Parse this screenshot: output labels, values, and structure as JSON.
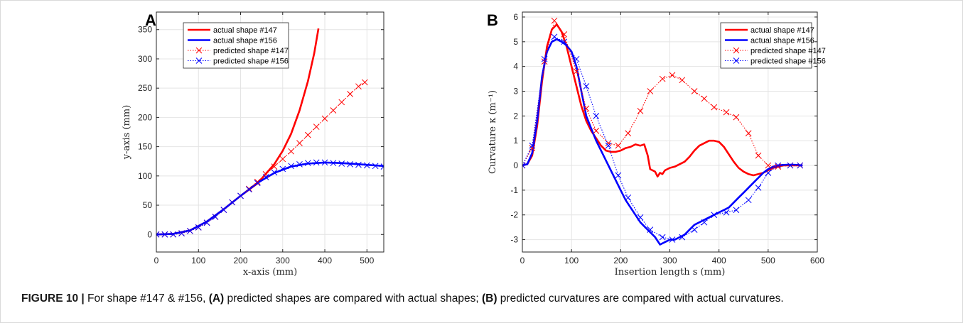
{
  "caption": {
    "label": "FIGURE 10 |",
    "t1": " For shape #147 & #156, ",
    "a": "(A)",
    "t2": " predicted shapes are compared with actual shapes; ",
    "b": "(B)",
    "t3": " predicted curvatures are compared with actual curvatures."
  },
  "chart_data": [
    {
      "type": "line",
      "panel": "A",
      "xlabel": "x-axis (mm)",
      "ylabel": "y-axis (mm)",
      "xlim": [
        0,
        540
      ],
      "ylim": [
        -30,
        380
      ],
      "xticks": [
        0,
        100,
        200,
        300,
        400,
        500
      ],
      "yticks": [
        0,
        50,
        100,
        150,
        200,
        250,
        300,
        350
      ],
      "grid": true,
      "legend_position": "top-left",
      "series": [
        {
          "name": "actual shape #147",
          "style": "solid",
          "color": "#ff0000",
          "markers": false,
          "x": [
            0,
            40,
            80,
            120,
            160,
            200,
            240,
            280,
            300,
            320,
            340,
            360,
            375,
            385
          ],
          "y": [
            0,
            1,
            7,
            22,
            43,
            66,
            87,
            120,
            143,
            172,
            212,
            262,
            310,
            352
          ]
        },
        {
          "name": "actual shape #156",
          "style": "solid",
          "color": "#0000ff",
          "markers": false,
          "x": [
            0,
            40,
            80,
            120,
            160,
            200,
            240,
            280,
            320,
            360,
            400,
            440,
            480,
            520,
            540
          ],
          "y": [
            0,
            1,
            7,
            22,
            43,
            66,
            88,
            105,
            116,
            121,
            123,
            122,
            120,
            118,
            117
          ]
        },
        {
          "name": "predicted shape #147",
          "style": "dotted",
          "color": "#ff0000",
          "markers": true,
          "x": [
            0,
            20,
            40,
            60,
            80,
            100,
            120,
            140,
            160,
            180,
            200,
            220,
            240,
            260,
            280,
            300,
            320,
            340,
            360,
            380,
            400,
            420,
            440,
            460,
            480,
            495
          ],
          "y": [
            0,
            0,
            0,
            2,
            6,
            12,
            20,
            30,
            42,
            55,
            66,
            78,
            90,
            103,
            116,
            129,
            142,
            156,
            170,
            184,
            198,
            212,
            226,
            240,
            253,
            260
          ]
        },
        {
          "name": "predicted shape #156",
          "style": "dotted",
          "color": "#0000ff",
          "markers": true,
          "x": [
            0,
            20,
            40,
            60,
            80,
            100,
            120,
            140,
            160,
            180,
            200,
            220,
            240,
            260,
            280,
            300,
            320,
            340,
            360,
            380,
            400,
            420,
            440,
            460,
            480,
            500,
            520,
            540
          ],
          "y": [
            0,
            0,
            0,
            2,
            6,
            12,
            20,
            30,
            42,
            55,
            66,
            77,
            88,
            98,
            106,
            112,
            117,
            120,
            122,
            123,
            123,
            122,
            121,
            120,
            119,
            118,
            117,
            116
          ]
        }
      ]
    },
    {
      "type": "line",
      "panel": "B",
      "xlabel": "Insertion length s (mm)",
      "ylabel": "Curvature κ (m⁻¹)",
      "xlim": [
        0,
        600
      ],
      "ylim": [
        -3.5,
        6.2
      ],
      "xticks": [
        0,
        100,
        200,
        300,
        400,
        500,
        600
      ],
      "yticks": [
        -3,
        -2,
        -1,
        0,
        1,
        2,
        3,
        4,
        5,
        6
      ],
      "grid": true,
      "legend_position": "top-right",
      "series": [
        {
          "name": "actual shape #147",
          "style": "solid",
          "color": "#ff0000",
          "markers": false,
          "x": [
            0,
            10,
            20,
            30,
            40,
            50,
            60,
            70,
            80,
            90,
            100,
            110,
            120,
            130,
            140,
            150,
            160,
            170,
            180,
            190,
            200,
            210,
            220,
            230,
            240,
            248,
            255,
            260,
            265,
            270,
            275,
            280,
            285,
            290,
            300,
            310,
            320,
            330,
            340,
            350,
            360,
            370,
            380,
            390,
            400,
            410,
            420,
            430,
            440,
            450,
            460,
            470,
            480,
            490,
            500,
            510,
            520,
            530,
            540,
            550,
            560,
            570
          ],
          "y": [
            0,
            0.05,
            0.4,
            1.6,
            3.4,
            4.8,
            5.5,
            5.7,
            5.4,
            4.8,
            4.0,
            3.2,
            2.4,
            1.8,
            1.4,
            1.1,
            0.8,
            0.6,
            0.55,
            0.55,
            0.6,
            0.7,
            0.75,
            0.85,
            0.8,
            0.85,
            0.4,
            -0.15,
            -0.2,
            -0.25,
            -0.45,
            -0.3,
            -0.35,
            -0.2,
            -0.1,
            -0.05,
            0.05,
            0.15,
            0.35,
            0.6,
            0.8,
            0.9,
            1.0,
            1.0,
            0.95,
            0.75,
            0.45,
            0.15,
            -0.1,
            -0.25,
            -0.35,
            -0.4,
            -0.35,
            -0.3,
            -0.2,
            -0.1,
            -0.05,
            0,
            0,
            0,
            0,
            0
          ]
        },
        {
          "name": "actual shape #156",
          "style": "solid",
          "color": "#0000ff",
          "markers": false,
          "x": [
            0,
            10,
            20,
            30,
            40,
            50,
            60,
            70,
            80,
            90,
            100,
            110,
            120,
            130,
            140,
            150,
            160,
            170,
            180,
            190,
            200,
            210,
            220,
            230,
            240,
            250,
            260,
            270,
            280,
            290,
            300,
            310,
            320,
            330,
            340,
            350,
            360,
            370,
            380,
            390,
            400,
            410,
            420,
            430,
            440,
            450,
            460,
            470,
            480,
            490,
            500,
            510,
            520,
            530,
            540,
            550,
            560,
            570
          ],
          "y": [
            0,
            0.05,
            0.5,
            1.8,
            3.6,
            4.6,
            5.0,
            5.1,
            5.0,
            4.85,
            4.6,
            4.0,
            3.0,
            2.0,
            1.5,
            1.0,
            0.6,
            0.2,
            -0.2,
            -0.6,
            -1.0,
            -1.4,
            -1.7,
            -2.0,
            -2.3,
            -2.5,
            -2.7,
            -2.9,
            -3.2,
            -3.1,
            -3.0,
            -3.0,
            -2.9,
            -2.8,
            -2.6,
            -2.4,
            -2.3,
            -2.2,
            -2.1,
            -2.0,
            -1.9,
            -1.8,
            -1.7,
            -1.5,
            -1.3,
            -1.1,
            -0.9,
            -0.7,
            -0.5,
            -0.3,
            -0.15,
            -0.05,
            0,
            0.02,
            0.03,
            0.03,
            0.02,
            0
          ]
        },
        {
          "name": "predicted shape #147",
          "style": "dotted",
          "color": "#ff0000",
          "markers": true,
          "x": [
            0,
            20,
            45,
            65,
            85,
            110,
            130,
            150,
            175,
            195,
            215,
            240,
            260,
            285,
            305,
            325,
            350,
            370,
            390,
            415,
            435,
            460,
            480,
            500,
            520,
            545,
            565
          ],
          "y": [
            0,
            0.7,
            4.2,
            5.85,
            5.3,
            3.8,
            2.3,
            1.4,
            0.9,
            0.8,
            1.3,
            2.2,
            3.0,
            3.5,
            3.65,
            3.45,
            3.0,
            2.7,
            2.35,
            2.15,
            1.95,
            1.3,
            0.4,
            0.0,
            -0.05,
            0.0,
            0.0
          ]
        },
        {
          "name": "predicted shape #156",
          "style": "dotted",
          "color": "#0000ff",
          "markers": true,
          "x": [
            0,
            20,
            45,
            65,
            85,
            110,
            130,
            150,
            175,
            195,
            215,
            240,
            260,
            285,
            305,
            325,
            350,
            370,
            390,
            415,
            435,
            460,
            480,
            500,
            520,
            545,
            565
          ],
          "y": [
            0,
            0.8,
            4.3,
            5.2,
            5.0,
            4.3,
            3.2,
            2.0,
            0.8,
            -0.4,
            -1.3,
            -2.1,
            -2.6,
            -2.9,
            -3.0,
            -2.9,
            -2.6,
            -2.3,
            -2.0,
            -1.9,
            -1.8,
            -1.4,
            -0.9,
            -0.3,
            0.0,
            0.0,
            0.0
          ]
        }
      ]
    }
  ]
}
